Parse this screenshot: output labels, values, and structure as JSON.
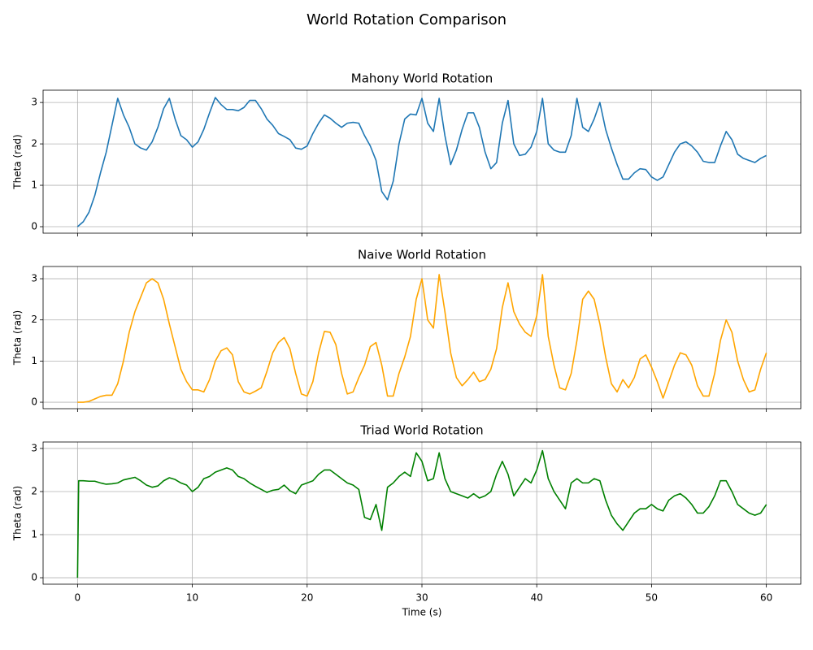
{
  "title": "World Rotation Comparison",
  "chart_data": [
    {
      "type": "line",
      "title": "Mahony World Rotation",
      "ylabel": "Theta (rad)",
      "color": "#1f77b4",
      "x": [
        0,
        0.5,
        1,
        1.5,
        2,
        2.5,
        3,
        3.5,
        4,
        4.5,
        5,
        5.5,
        6,
        6.5,
        7,
        7.5,
        8,
        8.5,
        9,
        9.5,
        10,
        10.5,
        11,
        11.5,
        12,
        12.5,
        13,
        13.5,
        14,
        14.5,
        15,
        15.5,
        16,
        16.5,
        17,
        17.5,
        18,
        18.5,
        19,
        19.5,
        20,
        20.5,
        21,
        21.5,
        22,
        22.5,
        23,
        23.5,
        24,
        24.5,
        25,
        25.5,
        26,
        26.5,
        27,
        27.5,
        28,
        28.5,
        29,
        29.5,
        30,
        30.5,
        31,
        31.5,
        32,
        32.5,
        33,
        33.5,
        34,
        34.5,
        35,
        35.5,
        36,
        36.5,
        37,
        37.5,
        38,
        38.5,
        39,
        39.5,
        40,
        40.5,
        41,
        41.5,
        42,
        42.5,
        43,
        43.5,
        44,
        44.5,
        45,
        45.5,
        46,
        46.5,
        47,
        47.5,
        48,
        48.5,
        49,
        49.5,
        50,
        50.5,
        51,
        51.5,
        52,
        52.5,
        53,
        53.5,
        54,
        54.5,
        55,
        55.5,
        56,
        56.5,
        57,
        57.5,
        58,
        58.5,
        59,
        59.5,
        60
      ],
      "values": [
        0,
        0.12,
        0.35,
        0.75,
        1.3,
        1.8,
        2.45,
        3.1,
        2.7,
        2.4,
        2.0,
        1.9,
        1.85,
        2.05,
        2.4,
        2.85,
        3.1,
        2.6,
        2.2,
        2.1,
        1.92,
        2.05,
        2.35,
        2.75,
        3.12,
        2.95,
        2.83,
        2.83,
        2.8,
        2.88,
        3.05,
        3.05,
        2.85,
        2.6,
        2.45,
        2.25,
        2.18,
        2.1,
        1.9,
        1.87,
        1.95,
        2.25,
        2.5,
        2.7,
        2.62,
        2.5,
        2.4,
        2.5,
        2.52,
        2.5,
        2.2,
        1.95,
        1.6,
        0.85,
        0.65,
        1.1,
        2.0,
        2.6,
        2.72,
        2.7,
        3.1,
        2.5,
        2.3,
        3.1,
        2.2,
        1.5,
        1.85,
        2.35,
        2.75,
        2.75,
        2.4,
        1.8,
        1.4,
        1.55,
        2.5,
        3.05,
        2.0,
        1.72,
        1.75,
        1.92,
        2.3,
        3.1,
        2.0,
        1.85,
        1.8,
        1.8,
        2.2,
        3.1,
        2.4,
        2.3,
        2.6,
        3.0,
        2.35,
        1.9,
        1.5,
        1.15,
        1.15,
        1.3,
        1.4,
        1.38,
        1.2,
        1.12,
        1.2,
        1.5,
        1.8,
        2.0,
        2.05,
        1.95,
        1.8,
        1.58,
        1.55,
        1.55,
        1.95,
        2.3,
        2.1,
        1.75,
        1.65,
        1.6,
        1.55,
        1.65,
        1.72
      ],
      "xlim": [
        -3,
        63
      ],
      "ylim": [
        -0.157,
        3.297
      ],
      "xticks": [
        0,
        10,
        20,
        30,
        40,
        50,
        60
      ],
      "yticks": [
        0,
        1,
        2,
        3
      ],
      "grid": true
    },
    {
      "type": "line",
      "title": "Naive World Rotation",
      "ylabel": "Theta (rad)",
      "color": "#ffa500",
      "x": [
        0,
        0.5,
        1,
        1.5,
        2,
        2.5,
        3,
        3.5,
        4,
        4.5,
        5,
        5.5,
        6,
        6.5,
        7,
        7.5,
        8,
        8.5,
        9,
        9.5,
        10,
        10.5,
        11,
        11.5,
        12,
        12.5,
        13,
        13.5,
        14,
        14.5,
        15,
        15.5,
        16,
        16.5,
        17,
        17.5,
        18,
        18.5,
        19,
        19.5,
        20,
        20.5,
        21,
        21.5,
        22,
        22.5,
        23,
        23.5,
        24,
        24.5,
        25,
        25.5,
        26,
        26.5,
        27,
        27.5,
        28,
        28.5,
        29,
        29.5,
        30,
        30.5,
        31,
        31.5,
        32,
        32.5,
        33,
        33.5,
        34,
        34.5,
        35,
        35.5,
        36,
        36.5,
        37,
        37.5,
        38,
        38.5,
        39,
        39.5,
        40,
        40.5,
        41,
        41.5,
        42,
        42.5,
        43,
        43.5,
        44,
        44.5,
        45,
        45.5,
        46,
        46.5,
        47,
        47.5,
        48,
        48.5,
        49,
        49.5,
        50,
        50.5,
        51,
        51.5,
        52,
        52.5,
        53,
        53.5,
        54,
        54.5,
        55,
        55.5,
        56,
        56.5,
        57,
        57.5,
        58,
        58.5,
        59,
        59.5,
        60
      ],
      "values": [
        0,
        0,
        0.02,
        0.08,
        0.14,
        0.17,
        0.17,
        0.45,
        1.0,
        1.7,
        2.2,
        2.55,
        2.9,
        3.0,
        2.9,
        2.5,
        1.9,
        1.35,
        0.8,
        0.5,
        0.3,
        0.3,
        0.25,
        0.55,
        1.0,
        1.25,
        1.32,
        1.15,
        0.5,
        0.25,
        0.2,
        0.27,
        0.35,
        0.75,
        1.2,
        1.45,
        1.57,
        1.3,
        0.7,
        0.2,
        0.15,
        0.5,
        1.2,
        1.72,
        1.7,
        1.4,
        0.7,
        0.2,
        0.25,
        0.6,
        0.9,
        1.35,
        1.45,
        0.9,
        0.15,
        0.15,
        0.7,
        1.1,
        1.6,
        2.5,
        3.0,
        2.0,
        1.8,
        3.1,
        2.2,
        1.2,
        0.6,
        0.4,
        0.55,
        0.73,
        0.5,
        0.55,
        0.8,
        1.3,
        2.3,
        2.9,
        2.2,
        1.9,
        1.7,
        1.6,
        2.1,
        3.1,
        1.6,
        0.9,
        0.35,
        0.3,
        0.7,
        1.5,
        2.5,
        2.7,
        2.5,
        1.9,
        1.1,
        0.45,
        0.25,
        0.55,
        0.35,
        0.6,
        1.05,
        1.15,
        0.85,
        0.5,
        0.1,
        0.5,
        0.9,
        1.2,
        1.15,
        0.9,
        0.4,
        0.15,
        0.15,
        0.7,
        1.5,
        2.0,
        1.7,
        1.0,
        0.55,
        0.25,
        0.3,
        0.8,
        1.2
      ],
      "xlim": [
        -3,
        63
      ],
      "ylim": [
        -0.157,
        3.297
      ],
      "xticks": [
        0,
        10,
        20,
        30,
        40,
        50,
        60
      ],
      "yticks": [
        0,
        1,
        2,
        3
      ],
      "grid": true
    },
    {
      "type": "line",
      "title": "Triad World Rotation",
      "xlabel": "Time (s)",
      "ylabel": "Theta (rad)",
      "color": "#008000",
      "x": [
        0,
        0.1,
        0.5,
        1,
        1.5,
        2,
        2.5,
        3,
        3.5,
        4,
        4.5,
        5,
        5.5,
        6,
        6.5,
        7,
        7.5,
        8,
        8.5,
        9,
        9.5,
        10,
        10.5,
        11,
        11.5,
        12,
        12.5,
        13,
        13.5,
        14,
        14.5,
        15,
        15.5,
        16,
        16.5,
        17,
        17.5,
        18,
        18.5,
        19,
        19.5,
        20,
        20.5,
        21,
        21.5,
        22,
        22.5,
        23,
        23.5,
        24,
        24.5,
        25,
        25.5,
        26,
        26.5,
        27,
        27.5,
        28,
        28.5,
        29,
        29.5,
        30,
        30.5,
        31,
        31.5,
        32,
        32.5,
        33,
        33.5,
        34,
        34.5,
        35,
        35.5,
        36,
        36.5,
        37,
        37.5,
        38,
        38.5,
        39,
        39.5,
        40,
        40.5,
        41,
        41.5,
        42,
        42.5,
        43,
        43.5,
        44,
        44.5,
        45,
        45.5,
        46,
        46.5,
        47,
        47.5,
        48,
        48.5,
        49,
        49.5,
        50,
        50.5,
        51,
        51.5,
        52,
        52.5,
        53,
        53.5,
        54,
        54.5,
        55,
        55.5,
        56,
        56.5,
        57,
        57.5,
        58,
        58.5,
        59,
        59.5,
        60
      ],
      "values": [
        0,
        2.25,
        2.25,
        2.24,
        2.24,
        2.2,
        2.17,
        2.18,
        2.2,
        2.27,
        2.3,
        2.33,
        2.25,
        2.15,
        2.1,
        2.13,
        2.25,
        2.32,
        2.28,
        2.2,
        2.15,
        2.0,
        2.1,
        2.3,
        2.35,
        2.45,
        2.5,
        2.55,
        2.5,
        2.35,
        2.3,
        2.2,
        2.12,
        2.05,
        1.98,
        2.03,
        2.05,
        2.15,
        2.02,
        1.95,
        2.15,
        2.2,
        2.25,
        2.4,
        2.5,
        2.5,
        2.4,
        2.3,
        2.2,
        2.15,
        2.05,
        1.4,
        1.35,
        1.7,
        1.1,
        2.1,
        2.2,
        2.35,
        2.45,
        2.35,
        2.9,
        2.7,
        2.25,
        2.3,
        2.9,
        2.3,
        2.0,
        1.95,
        1.9,
        1.85,
        1.95,
        1.85,
        1.9,
        2.0,
        2.4,
        2.7,
        2.4,
        1.9,
        2.1,
        2.3,
        2.2,
        2.5,
        2.95,
        2.3,
        2.0,
        1.8,
        1.6,
        2.2,
        2.3,
        2.2,
        2.2,
        2.3,
        2.25,
        1.8,
        1.45,
        1.25,
        1.1,
        1.3,
        1.5,
        1.6,
        1.6,
        1.7,
        1.6,
        1.55,
        1.8,
        1.9,
        1.95,
        1.85,
        1.7,
        1.5,
        1.5,
        1.65,
        1.9,
        2.25,
        2.25,
        2.0,
        1.7,
        1.6,
        1.5,
        1.45,
        1.5,
        1.7
      ],
      "xlim": [
        -3,
        63
      ],
      "ylim": [
        -0.15,
        3.15
      ],
      "xticks": [
        0,
        10,
        20,
        30,
        40,
        50,
        60
      ],
      "yticks": [
        0,
        1,
        2,
        3
      ],
      "grid": true
    }
  ]
}
